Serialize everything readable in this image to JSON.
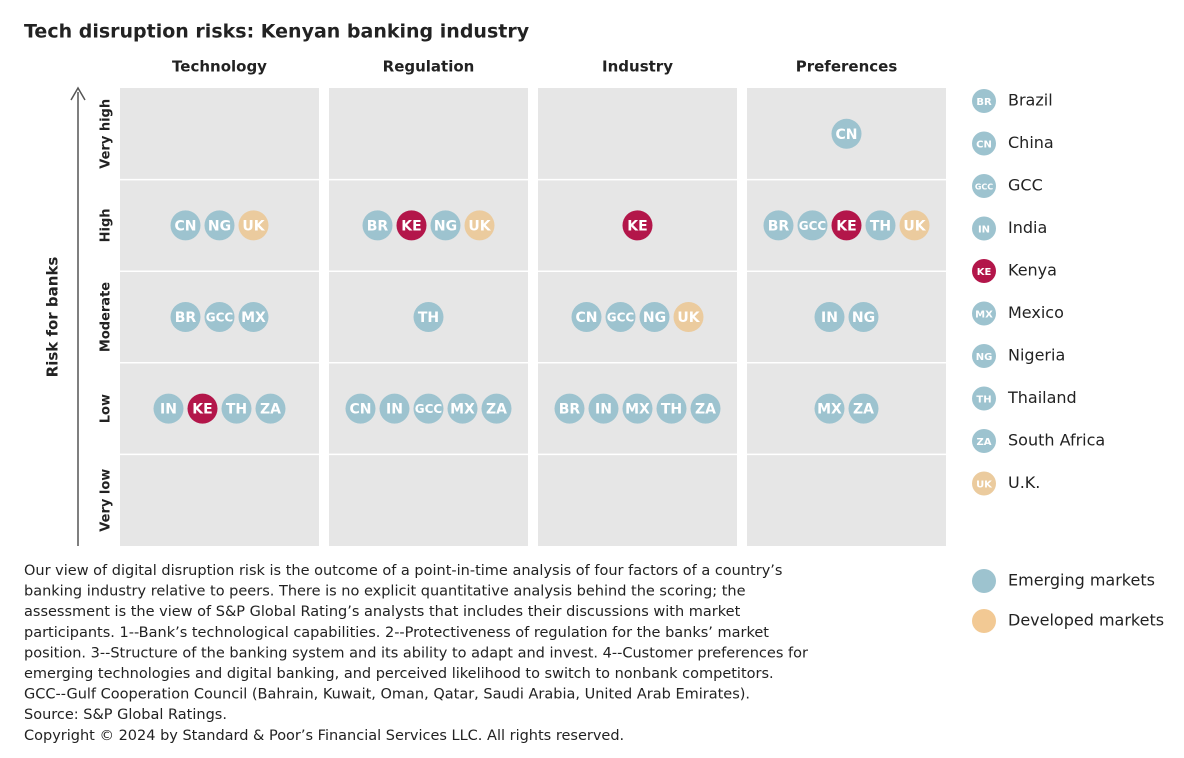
{
  "title": "Tech disruption risks: Kenyan banking industry",
  "axis_label": "Risk for banks",
  "columns": [
    "Technology",
    "Regulation",
    "Industry",
    "Preferences"
  ],
  "rows": [
    "Very high",
    "High",
    "Moderate",
    "Low",
    "Very low"
  ],
  "cells": [
    [
      [],
      [
        "CN",
        "NG",
        "UK"
      ],
      [
        "BR",
        "GCC",
        "MX"
      ],
      [
        "IN",
        "KE",
        "TH",
        "ZA"
      ],
      []
    ],
    [
      [],
      [
        "BR",
        "KE",
        "NG",
        "UK"
      ],
      [
        "TH"
      ],
      [
        "CN",
        "IN",
        "GCC",
        "MX",
        "ZA"
      ],
      []
    ],
    [
      [],
      [
        "KE"
      ],
      [
        "CN",
        "GCC",
        "NG",
        "UK"
      ],
      [
        "BR",
        "IN",
        "MX",
        "TH",
        "ZA"
      ],
      []
    ],
    [
      [
        "CN"
      ],
      [
        "BR",
        "GCC",
        "KE",
        "TH",
        "UK"
      ],
      [
        "IN",
        "NG"
      ],
      [
        "MX",
        "ZA"
      ],
      []
    ]
  ],
  "countries": [
    {
      "code": "BR",
      "name": "Brazil",
      "color": "#9dc3cf"
    },
    {
      "code": "CN",
      "name": "China",
      "color": "#9dc3cf"
    },
    {
      "code": "GCC",
      "name": "GCC",
      "color": "#9dc3cf"
    },
    {
      "code": "IN",
      "name": "India",
      "color": "#9dc3cf"
    },
    {
      "code": "KE",
      "name": "Kenya",
      "color": "#b3164a"
    },
    {
      "code": "MX",
      "name": "Mexico",
      "color": "#9dc3cf"
    },
    {
      "code": "NG",
      "name": "Nigeria",
      "color": "#9dc3cf"
    },
    {
      "code": "TH",
      "name": "Thailand",
      "color": "#9dc3cf"
    },
    {
      "code": "ZA",
      "name": "South Africa",
      "color": "#9dc3cf"
    },
    {
      "code": "UK",
      "name": "U.K.",
      "color": "#ebcb9e"
    }
  ],
  "groups": [
    {
      "name": "Emerging markets",
      "color": "#9dc3cf"
    },
    {
      "name": "Developed markets",
      "color": "#f2c994"
    }
  ],
  "notes": [
    "Our view of digital disruption risk is the outcome of a point-in-time analysis of four factors of a country’s",
    "banking industry relative to peers. There is no explicit quantitative analysis behind the scoring; the",
    "assessment is the view of S&P Global Rating’s analysts that includes their discussions with market",
    "participants. 1--Bank’s technological capabilities. 2--Protectiveness of regulation for the banks’ market",
    "position. 3--Structure of the banking system and its ability to adapt and invest. 4--Customer preferences for",
    "emerging technologies and digital banking, and perceived likelihood to switch to nonbank competitors.",
    "GCC--Gulf Cooperation Council (Bahrain, Kuwait, Oman, Qatar, Saudi Arabia, United Arab Emirates).",
    "Source: S&P Global Ratings.",
    "Copyright © 2024 by Standard & Poor’s Financial Services LLC. All rights reserved."
  ]
}
